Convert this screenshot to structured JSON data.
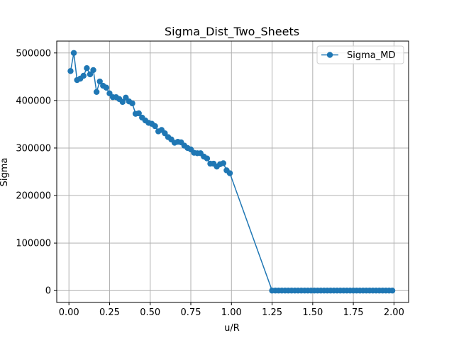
{
  "chart_data": {
    "type": "line",
    "title": "Sigma_Dist_Two_Sheets",
    "xlabel": "u/R",
    "ylabel": "Sigma",
    "xlim": [
      -0.075,
      2.09
    ],
    "ylim": [
      -25000,
      525000
    ],
    "xticks": [
      0.0,
      0.25,
      0.5,
      0.75,
      1.0,
      1.25,
      1.5,
      1.75,
      2.0
    ],
    "xtick_labels": [
      "0.00",
      "0.25",
      "0.50",
      "0.75",
      "1.00",
      "1.25",
      "1.50",
      "1.75",
      "2.00"
    ],
    "yticks": [
      0,
      100000,
      200000,
      300000,
      400000,
      500000
    ],
    "ytick_labels": [
      "0",
      "100000",
      "200000",
      "300000",
      "400000",
      "500000"
    ],
    "grid": true,
    "legend_position": "top-right",
    "colors": {
      "series": "#1f77b4",
      "grid": "#b0b0b0",
      "axis": "#000000"
    },
    "series": [
      {
        "name": "Sigma_MD",
        "marker": "circle",
        "x": [
          0.01,
          0.03,
          0.05,
          0.07,
          0.09,
          0.11,
          0.13,
          0.15,
          0.17,
          0.19,
          0.21,
          0.23,
          0.25,
          0.27,
          0.29,
          0.31,
          0.33,
          0.35,
          0.37,
          0.39,
          0.41,
          0.43,
          0.45,
          0.47,
          0.49,
          0.51,
          0.53,
          0.55,
          0.57,
          0.59,
          0.61,
          0.63,
          0.65,
          0.67,
          0.69,
          0.71,
          0.73,
          0.75,
          0.77,
          0.79,
          0.81,
          0.83,
          0.85,
          0.87,
          0.89,
          0.91,
          0.93,
          0.95,
          0.97,
          0.99,
          1.25,
          1.27,
          1.29,
          1.31,
          1.33,
          1.35,
          1.37,
          1.39,
          1.41,
          1.43,
          1.45,
          1.47,
          1.49,
          1.51,
          1.53,
          1.55,
          1.57,
          1.59,
          1.61,
          1.63,
          1.65,
          1.67,
          1.69,
          1.71,
          1.73,
          1.75,
          1.77,
          1.79,
          1.81,
          1.83,
          1.85,
          1.87,
          1.89,
          1.91,
          1.93,
          1.95,
          1.97,
          1.99
        ],
        "y": [
          462000,
          500000,
          443000,
          446000,
          452000,
          468000,
          455000,
          464000,
          418000,
          440000,
          431000,
          427000,
          415000,
          407000,
          407000,
          403000,
          397000,
          406000,
          398000,
          394000,
          372000,
          373000,
          364000,
          358000,
          353000,
          351000,
          346000,
          335000,
          338000,
          331000,
          323000,
          318000,
          311000,
          313000,
          312000,
          305000,
          300000,
          297000,
          290000,
          289000,
          289000,
          282000,
          278000,
          267000,
          267000,
          261000,
          266000,
          268000,
          253000,
          247000,
          0,
          0,
          0,
          0,
          0,
          0,
          0,
          0,
          0,
          0,
          0,
          0,
          0,
          0,
          0,
          0,
          0,
          0,
          0,
          0,
          0,
          0,
          0,
          0,
          0,
          0,
          0,
          0,
          0,
          0,
          0,
          0,
          0,
          0,
          0,
          0,
          0,
          0
        ]
      }
    ]
  }
}
